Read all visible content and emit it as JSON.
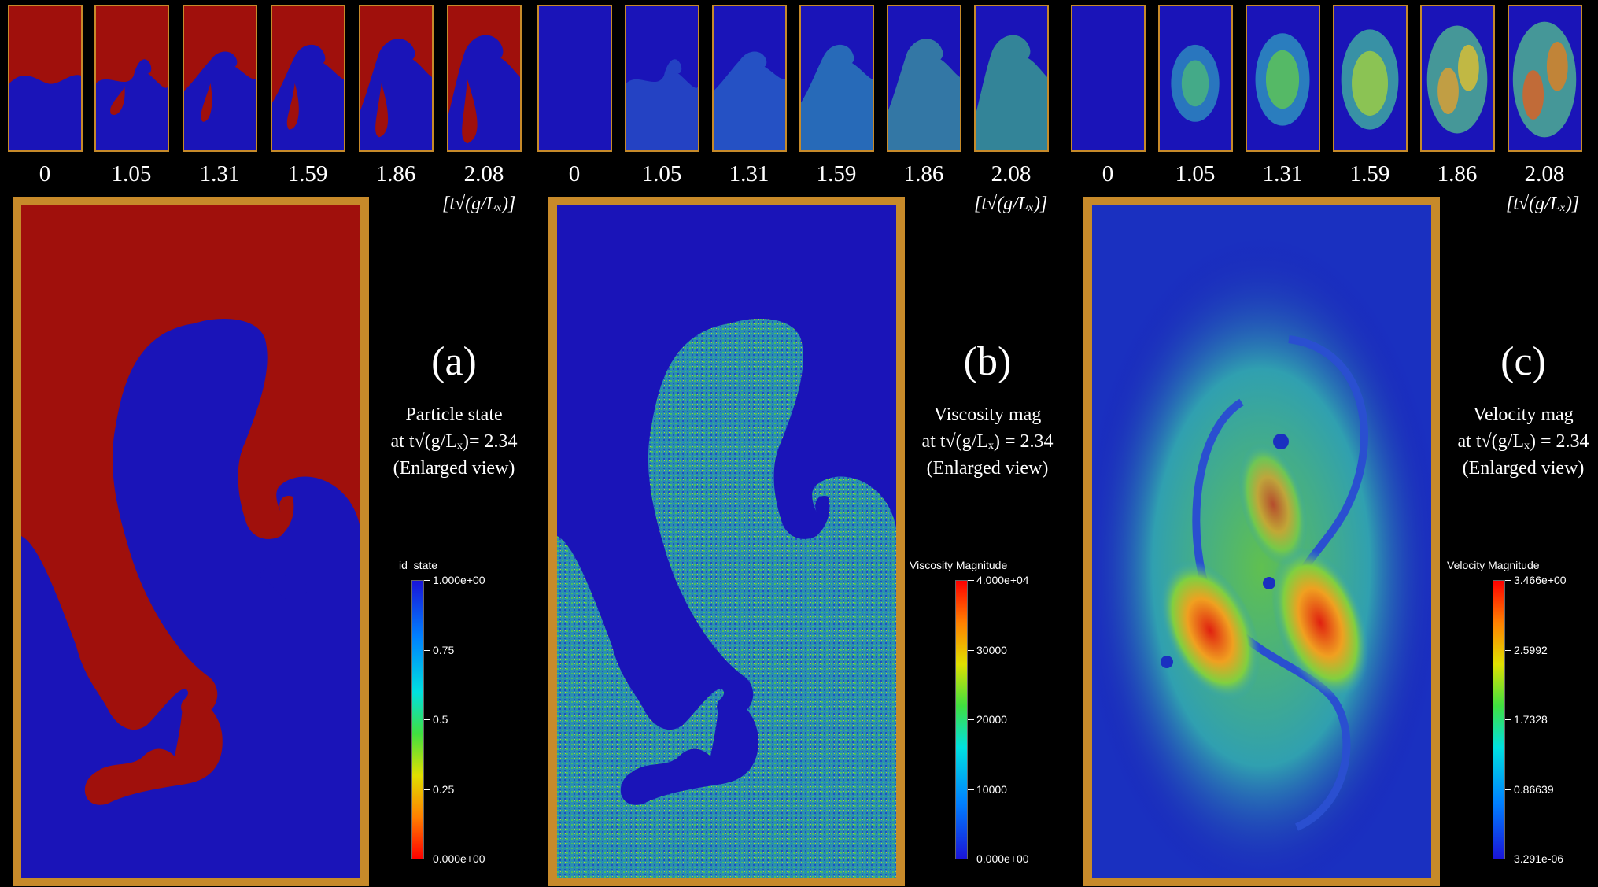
{
  "time_labels": [
    "0",
    "1.05",
    "1.31",
    "1.59",
    "1.86",
    "2.08"
  ],
  "units_label": "[t√(g/Lₓ)]",
  "panels": [
    {
      "letter": "(a)",
      "caption_line1": "Particle state",
      "caption_line2": "at t√(g/Lₓ)= 2.34",
      "caption_line3": "(Enlarged view)",
      "colorbar_title": "id_state",
      "colorbar_ticks": [
        "1.000e+00",
        "0.75",
        "0.5",
        "0.25",
        "0.000e+00"
      ],
      "colorbar_scheme": "blue-to-red-reversed"
    },
    {
      "letter": "(b)",
      "caption_line1": "Viscosity mag",
      "caption_line2": "at t√(g/Lₓ) = 2.34",
      "caption_line3": "(Enlarged view)",
      "colorbar_title": "Viscosity Magnitude",
      "colorbar_ticks": [
        "4.000e+04",
        "30000",
        "20000",
        "10000",
        "0.000e+00"
      ],
      "colorbar_scheme": "red-to-blue"
    },
    {
      "letter": "(c)",
      "caption_line1": "Velocity mag",
      "caption_line2": "at t√(g/Lₓ) = 2.34",
      "caption_line3": "(Enlarged view)",
      "colorbar_title": "Velocity Magnitude",
      "colorbar_ticks": [
        "3.466e+00",
        "2.5992",
        "1.7328",
        "0.86639",
        "3.291e-06"
      ],
      "colorbar_scheme": "red-to-blue"
    }
  ],
  "colors": {
    "frame": "#c78a2a",
    "fluid_heavy": "#a0100c",
    "fluid_light": "#1a14b8",
    "background": "#000000"
  }
}
